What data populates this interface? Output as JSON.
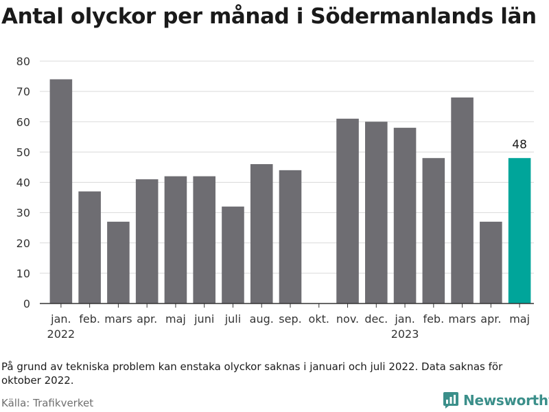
{
  "title": "Antal olyckor per månad i Södermanlands län",
  "footnote": "På grund av tekniska problem kan enstaka olyckor saknas i januari och juli 2022. Data saknas för oktober 2022.",
  "source": "Källa: Trafikverket",
  "brand": {
    "name": "Newsworthy",
    "icon": "newsworthy-logo-icon",
    "color": "#3b8f8a"
  },
  "colors": {
    "bar": "#6e6d72",
    "highlight": "#00a59a",
    "grid": "#d9d9d9",
    "axis": "#333333"
  },
  "chart_data": {
    "type": "bar",
    "title": "Antal olyckor per månad i Södermanlands län",
    "xlabel": "",
    "ylabel": "",
    "ylim": [
      0,
      80
    ],
    "yticks": [
      0,
      10,
      20,
      30,
      40,
      50,
      60,
      70,
      80
    ],
    "grid": true,
    "categories": [
      "jan.",
      "feb.",
      "mars",
      "apr.",
      "maj",
      "juni",
      "juli",
      "aug.",
      "sep.",
      "okt.",
      "nov.",
      "dec.",
      "jan.",
      "feb.",
      "mars",
      "apr.",
      "maj"
    ],
    "year_labels": [
      {
        "index": 0,
        "label": "2022"
      },
      {
        "index": 12,
        "label": "2023"
      }
    ],
    "values": [
      74,
      37,
      27,
      41,
      42,
      42,
      32,
      46,
      44,
      null,
      61,
      60,
      58,
      48,
      68,
      27,
      48
    ],
    "highlight_index": 16,
    "data_labels": [
      {
        "index": 16,
        "label": "48"
      }
    ]
  }
}
